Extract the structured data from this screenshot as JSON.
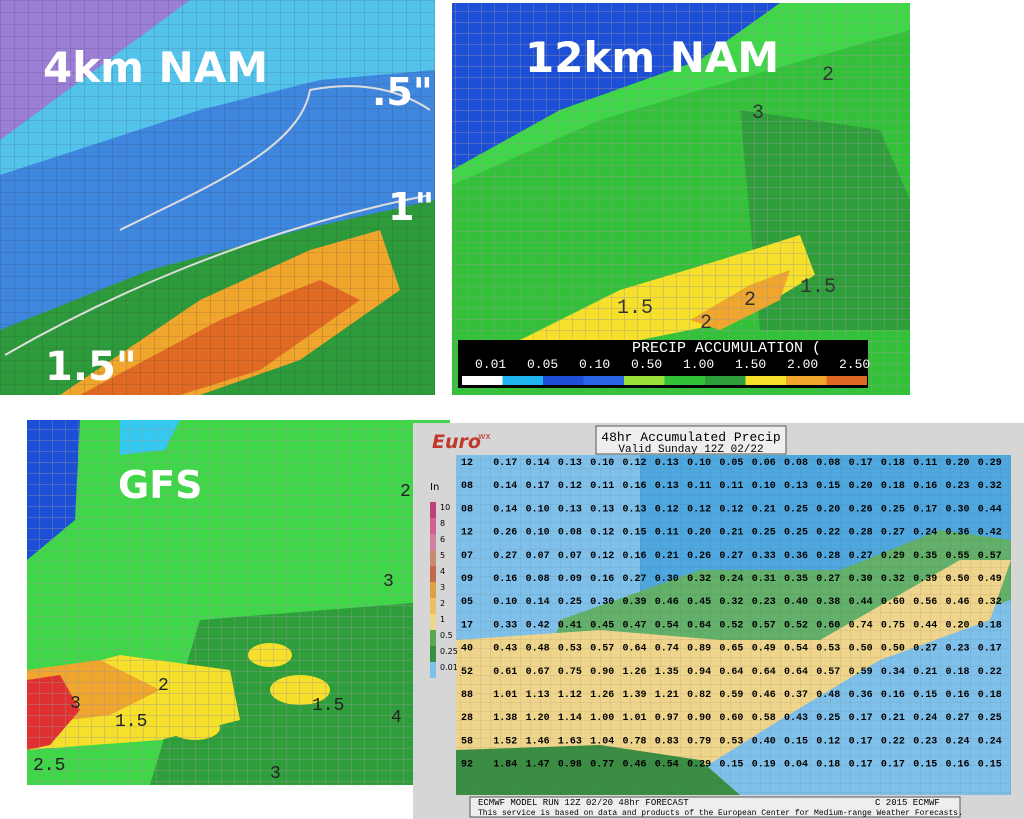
{
  "panels": [
    {
      "title": "4km NAM",
      "labels": [
        ".5\"",
        "1\"",
        "1.5\""
      ]
    },
    {
      "title": "12km NAM",
      "labels": [
        "3",
        "2",
        "1.5",
        "2",
        "2",
        "1.5"
      ],
      "legend": {
        "title": "PRECIP ACCUMULATION (",
        "ticks": [
          "0.01",
          "0.05",
          "0.10",
          "0.50",
          "1.00",
          "1.50",
          "2.00",
          "2.50"
        ]
      }
    },
    {
      "title": "GFS",
      "labels": [
        "2",
        "3",
        "2",
        "3",
        "1.5",
        "1.5",
        "4",
        "2.5",
        "3"
      ]
    },
    {
      "logo": "Euro",
      "logo_sup": "wx",
      "title": "48hr Accumulated Precip",
      "subtitle": "Valid Sunday 12Z 02/22",
      "unit": "In",
      "scale": [
        "10",
        "8",
        "6",
        "5",
        "4",
        "3",
        "2",
        "1",
        "0.5",
        "0.25",
        "0.01"
      ],
      "grid": [
        [
          "12",
          "0.17",
          "0.14",
          "0.13",
          "0.10",
          "0.12",
          "0.13",
          "0.10",
          "0.05",
          "0.06",
          "0.08",
          "0.08",
          "0.17",
          "0.18",
          "0.11",
          "0.20",
          "0.29"
        ],
        [
          "08",
          "0.14",
          "0.17",
          "0.12",
          "0.11",
          "0.16",
          "0.13",
          "0.11",
          "0.11",
          "0.10",
          "0.13",
          "0.15",
          "0.20",
          "0.18",
          "0.16",
          "0.23",
          "0.32"
        ],
        [
          "08",
          "0.14",
          "0.10",
          "0.13",
          "0.13",
          "0.13",
          "0.12",
          "0.12",
          "0.12",
          "0.21",
          "0.25",
          "0.20",
          "0.26",
          "0.25",
          "0.17",
          "0.30",
          "0.44"
        ],
        [
          "12",
          "0.26",
          "0.10",
          "0.08",
          "0.12",
          "0.15",
          "0.11",
          "0.20",
          "0.21",
          "0.25",
          "0.25",
          "0.22",
          "0.28",
          "0.27",
          "0.24",
          "0.36",
          "0.42"
        ],
        [
          "07",
          "0.27",
          "0.07",
          "0.07",
          "0.12",
          "0.16",
          "0.21",
          "0.26",
          "0.27",
          "0.33",
          "0.36",
          "0.28",
          "0.27",
          "0.29",
          "0.35",
          "0.55",
          "0.57"
        ],
        [
          "09",
          "0.16",
          "0.08",
          "0.09",
          "0.16",
          "0.27",
          "0.30",
          "0.32",
          "0.24",
          "0.31",
          "0.35",
          "0.27",
          "0.30",
          "0.32",
          "0.39",
          "0.50",
          "0.49"
        ],
        [
          "05",
          "0.10",
          "0.14",
          "0.25",
          "0.30",
          "0.39",
          "0.46",
          "0.45",
          "0.32",
          "0.23",
          "0.40",
          "0.38",
          "0.44",
          "0.60",
          "0.56",
          "0.46",
          "0.32"
        ],
        [
          "17",
          "0.33",
          "0.42",
          "0.41",
          "0.45",
          "0.47",
          "0.54",
          "0.64",
          "0.52",
          "0.57",
          "0.52",
          "0.60",
          "0.74",
          "0.75",
          "0.44",
          "0.20",
          "0.18"
        ],
        [
          "40",
          "0.43",
          "0.48",
          "0.53",
          "0.57",
          "0.64",
          "0.74",
          "0.89",
          "0.65",
          "0.49",
          "0.54",
          "0.53",
          "0.50",
          "0.50",
          "0.27",
          "0.23",
          "0.17"
        ],
        [
          "52",
          "0.61",
          "0.67",
          "0.75",
          "0.90",
          "1.26",
          "1.35",
          "0.94",
          "0.64",
          "0.64",
          "0.64",
          "0.57",
          "0.59",
          "0.34",
          "0.21",
          "0.18",
          "0.22"
        ],
        [
          "88",
          "1.01",
          "1.13",
          "1.12",
          "1.26",
          "1.39",
          "1.21",
          "0.82",
          "0.59",
          "0.46",
          "0.37",
          "0.48",
          "0.36",
          "0.16",
          "0.15",
          "0.16",
          "0.18"
        ],
        [
          "28",
          "1.38",
          "1.20",
          "1.14",
          "1.00",
          "1.01",
          "0.97",
          "0.90",
          "0.60",
          "0.58",
          "0.43",
          "0.25",
          "0.17",
          "0.21",
          "0.24",
          "0.27",
          "0.25"
        ],
        [
          "58",
          "1.52",
          "1.46",
          "1.63",
          "1.04",
          "0.78",
          "0.83",
          "0.79",
          "0.53",
          "0.40",
          "0.15",
          "0.12",
          "0.17",
          "0.22",
          "0.23",
          "0.24",
          "0.24"
        ],
        [
          "92",
          "1.84",
          "1.47",
          "0.98",
          "0.77",
          "0.46",
          "0.54",
          "0.29",
          "0.15",
          "0.19",
          "0.04",
          "0.18",
          "0.17",
          "0.17",
          "0.15",
          "0.16",
          "0.15"
        ]
      ],
      "footer": "ECMWF MODEL RUN 12Z 02/20 48hr FORECAST",
      "copyright": "C 2015 ECMWF",
      "credit": "This service is based on data and products of the European Center for Medium-range Weather Forecasts."
    }
  ]
}
